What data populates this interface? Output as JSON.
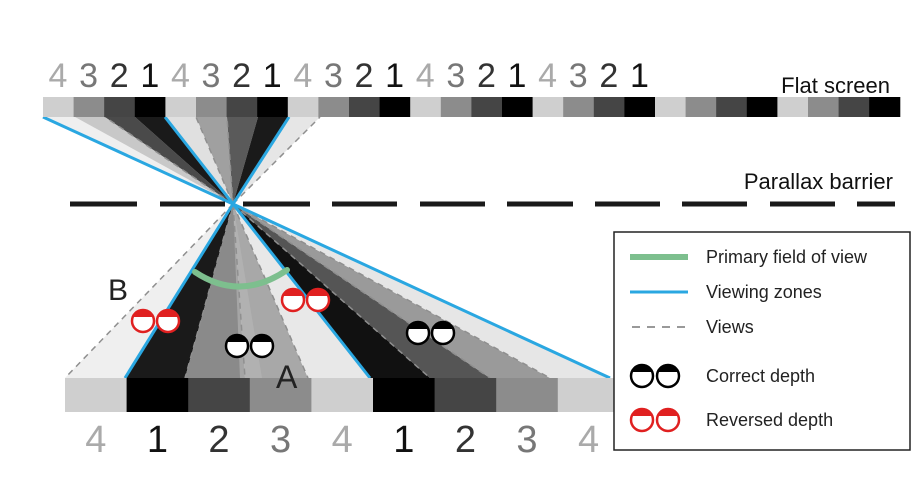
{
  "diagram": {
    "screen_label": "Flat screen",
    "barrier_label": "Parallax barrier",
    "marker_a": "A",
    "marker_b": "B",
    "top_view_numbers": [
      "4",
      "3",
      "2",
      "1",
      "4",
      "3",
      "2",
      "1",
      "4",
      "3",
      "2",
      "1",
      "4",
      "3",
      "2",
      "1",
      "4",
      "3",
      "2",
      "1"
    ],
    "bottom_view_numbers": [
      "4",
      "1",
      "2",
      "3",
      "4",
      "1",
      "2",
      "3",
      "4"
    ],
    "view_shades": {
      "1": "#000000",
      "2": "#454545",
      "3": "#8c8c8c",
      "4": "#cfcfcf"
    },
    "number_colors": {
      "1": "#111111",
      "2": "#333333",
      "3": "#777777",
      "4": "#aaaaaa"
    }
  },
  "legend": {
    "items": [
      {
        "label": "Primary field of view",
        "icon": "green-arc-line",
        "color": "#7dbf8e"
      },
      {
        "label": "Viewing zones",
        "icon": "blue-line",
        "color": "#2aa7e1"
      },
      {
        "label": "Views",
        "icon": "dashed-line",
        "color": "#999999"
      },
      {
        "label": "Correct depth",
        "icon": "black-eyes"
      },
      {
        "label": "Reversed depth",
        "icon": "red-eyes",
        "color": "#e02020"
      }
    ]
  }
}
